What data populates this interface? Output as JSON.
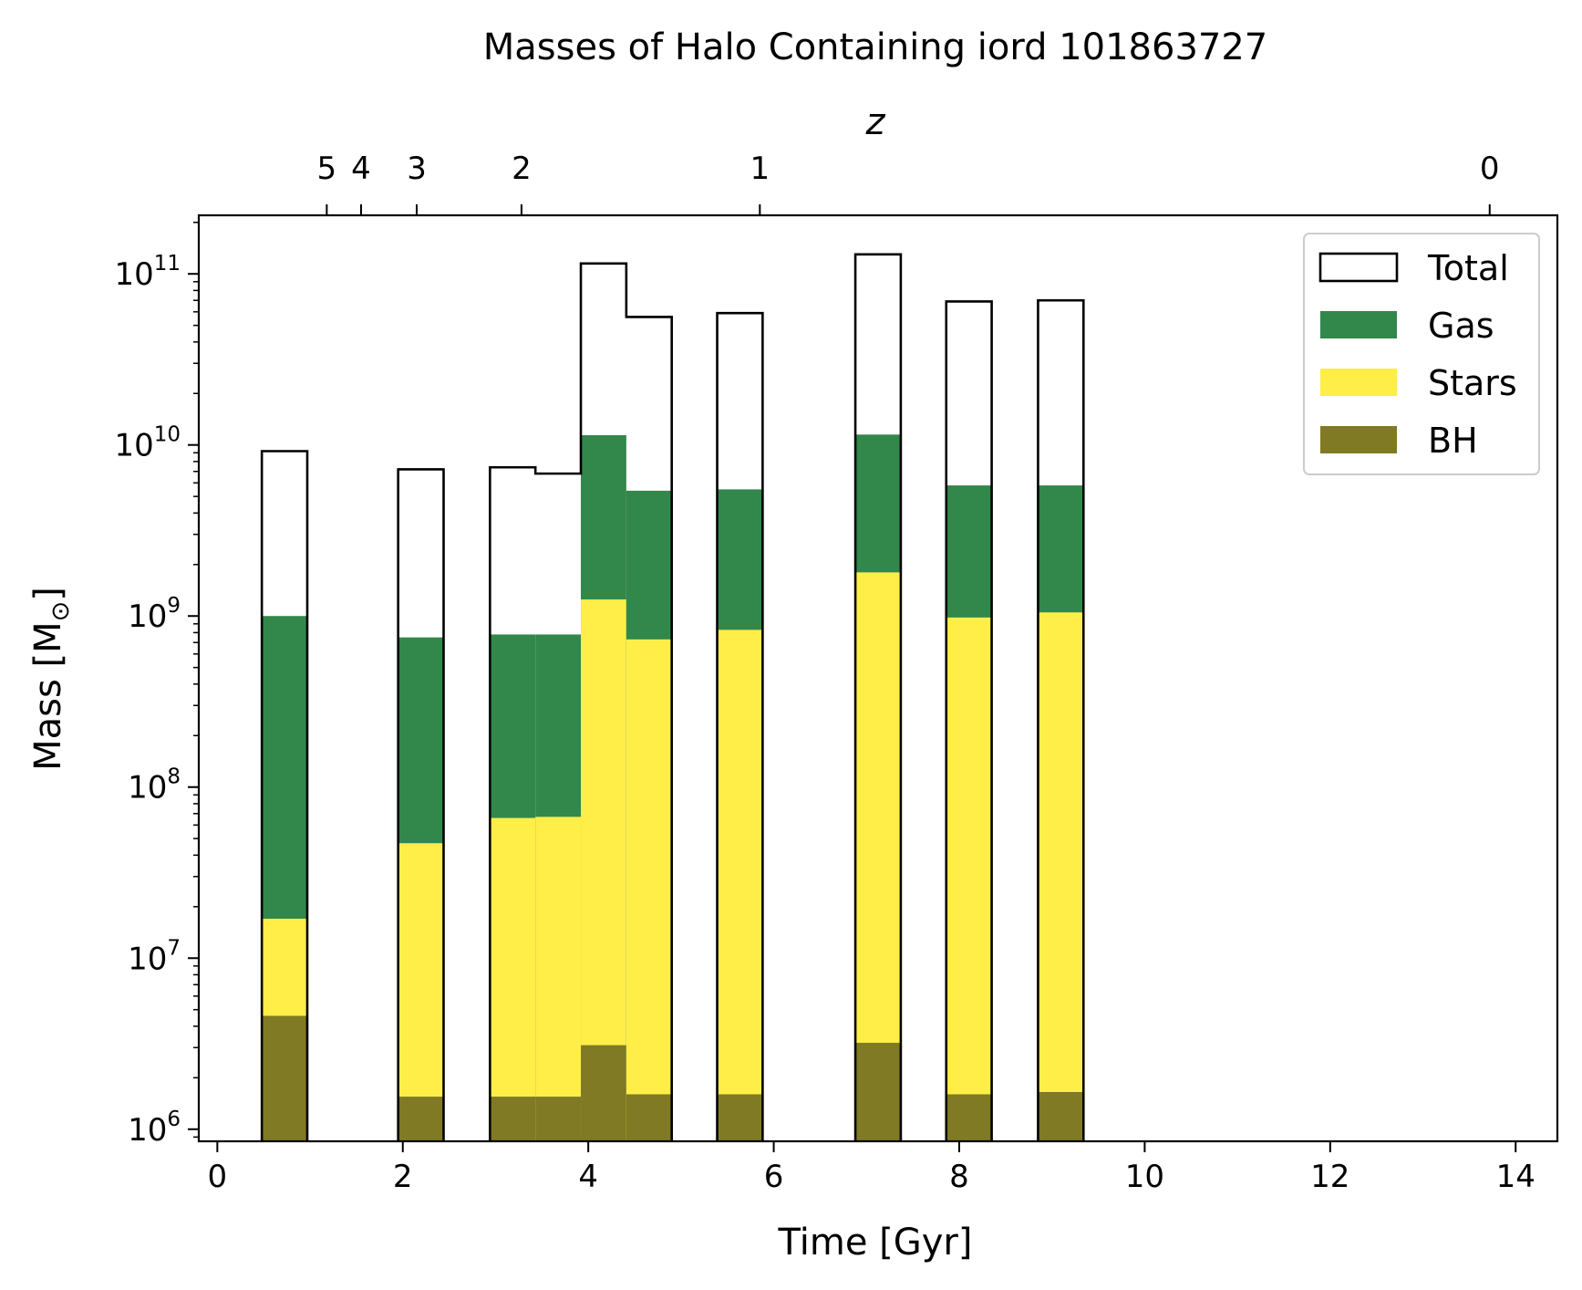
{
  "chart_data": {
    "type": "bar",
    "title": "Masses of Halo Containing iord 101863727",
    "xlabel": "Time [Gyr]",
    "ylabel_prefix": "Mass [M",
    "ylabel_sub": "⊙",
    "ylabel_suffix": "]",
    "top_axis_label": "z",
    "y_scale": "log",
    "xlim": [
      -0.2,
      14.45
    ],
    "ylim": [
      850000,
      220000000000
    ],
    "x_ticks": [
      0,
      2,
      4,
      6,
      8,
      10,
      12,
      14
    ],
    "y_tick_base": "10",
    "y_tick_exponents": [
      6,
      7,
      8,
      9,
      10,
      11
    ],
    "top_ticks": [
      {
        "label": "5",
        "time": 1.18
      },
      {
        "label": "4",
        "time": 1.55
      },
      {
        "label": "3",
        "time": 2.15
      },
      {
        "label": "2",
        "time": 3.28
      },
      {
        "label": "1",
        "time": 5.85
      },
      {
        "label": "0",
        "time": 13.72
      }
    ],
    "bin_width": 0.49,
    "bins": [
      {
        "start": 0.48,
        "total": 9200000000,
        "gas": 1000000000,
        "stars": 17000000,
        "bh": 4600000
      },
      {
        "start": 1.95,
        "total": 7200000000,
        "gas": 750000000,
        "stars": 47000000,
        "bh": 1550000
      },
      {
        "start": 2.94,
        "total": 7400000000,
        "gas": 780000000,
        "stars": 66000000,
        "bh": 1550000
      },
      {
        "start": 3.43,
        "total": 6800000000,
        "gas": 780000000,
        "stars": 67000000,
        "bh": 1550000
      },
      {
        "start": 3.92,
        "total": 115000000000,
        "gas": 11400000000,
        "stars": 1250000000,
        "bh": 3100000
      },
      {
        "start": 4.41,
        "total": 56000000000,
        "gas": 5400000000,
        "stars": 730000000,
        "bh": 1600000
      },
      {
        "start": 5.39,
        "total": 59000000000,
        "gas": 5500000000,
        "stars": 830000000,
        "bh": 1600000
      },
      {
        "start": 6.88,
        "total": 130000000000,
        "gas": 11500000000,
        "stars": 1800000000,
        "bh": 3200000
      },
      {
        "start": 7.86,
        "total": 69000000000,
        "gas": 5800000000,
        "stars": 980000000,
        "bh": 1600000
      },
      {
        "start": 8.85,
        "total": 70000000000,
        "gas": 5800000000,
        "stars": 1050000000,
        "bh": 1650000
      }
    ],
    "legend": {
      "position": "upper right",
      "entries": [
        {
          "key": "total",
          "label": "Total"
        },
        {
          "key": "gas",
          "label": "Gas"
        },
        {
          "key": "stars",
          "label": "Stars"
        },
        {
          "key": "bh",
          "label": "BH"
        }
      ]
    },
    "colors": {
      "total_edge": "#000000",
      "gas": "#32874b",
      "stars": "#ffee48",
      "bh": "#807a24"
    }
  }
}
